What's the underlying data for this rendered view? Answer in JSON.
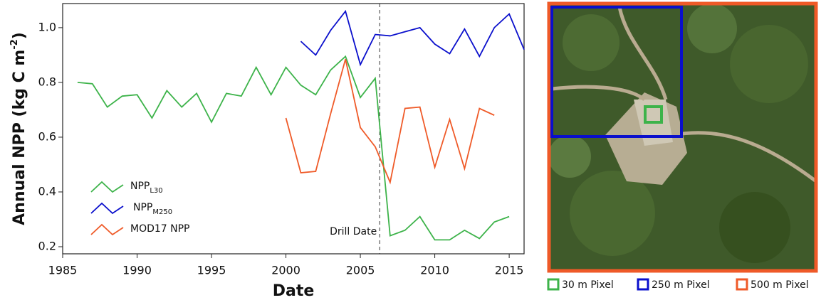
{
  "chart_data": {
    "type": "line",
    "x_label": "Date",
    "y_label": "Annual NPP (kg C m",
    "y_label_sup": "-2",
    "y_label_end": ")",
    "xlim": [
      1985,
      2016
    ],
    "ylim": [
      0.174,
      1.088
    ],
    "xticks": [
      1985,
      1990,
      1995,
      2000,
      2005,
      2010,
      2015
    ],
    "yticks": [
      0.2,
      0.4,
      0.6,
      0.8,
      {
        "value": 1,
        "label": "1.0"
      }
    ],
    "vline": {
      "x": 2006.3,
      "label": "Drill Date"
    },
    "series": [
      {
        "name": "NPP",
        "name_sub": "L30",
        "color": "#3db34a",
        "x": [
          1986,
          1987,
          1988,
          1989,
          1990,
          1991,
          1992,
          1993,
          1994,
          1995,
          1996,
          1997,
          1998,
          1999,
          2000,
          2001,
          2002,
          2003,
          2004,
          2005,
          2006,
          2007,
          2008,
          2009,
          2010,
          2011,
          2012,
          2013,
          2014,
          2015
        ],
        "values": [
          0.8,
          0.795,
          0.71,
          0.75,
          0.755,
          0.67,
          0.77,
          0.71,
          0.76,
          0.655,
          0.76,
          0.75,
          0.855,
          0.755,
          0.855,
          0.79,
          0.755,
          0.845,
          0.895,
          0.745,
          0.815,
          0.24,
          0.26,
          0.31,
          0.225,
          0.225,
          0.26,
          0.23,
          0.29,
          0.31
        ]
      },
      {
        "name": "NPP",
        "name_sub": "M250",
        "color": "#0a0fcc",
        "x": [
          2001,
          2002,
          2003,
          2004,
          2005,
          2006,
          2007,
          2008,
          2009,
          2010,
          2011,
          2012,
          2013,
          2014,
          2015,
          2016
        ],
        "values": [
          0.95,
          0.9,
          0.99,
          1.06,
          0.865,
          0.975,
          0.97,
          0.985,
          1.0,
          0.94,
          0.905,
          0.995,
          0.895,
          1.0,
          1.05,
          0.92
        ]
      },
      {
        "name": "MOD17 NPP",
        "color": "#ef5a28",
        "x": [
          2000,
          2001,
          2002,
          2003,
          2004,
          2005,
          2006,
          2007,
          2008,
          2009,
          2010,
          2011,
          2012,
          2013,
          2014
        ],
        "values": [
          0.67,
          0.47,
          0.475,
          0.685,
          0.885,
          0.635,
          0.565,
          0.435,
          0.705,
          0.71,
          0.49,
          0.665,
          0.485,
          0.705,
          0.68
        ]
      }
    ]
  },
  "image_legend": [
    {
      "label": "30 m Pixel",
      "color": "#3db34a"
    },
    {
      "label": "250 m Pixel",
      "color": "#0a0fcc"
    },
    {
      "label": "500 m Pixel",
      "color": "#ef5a28"
    }
  ]
}
